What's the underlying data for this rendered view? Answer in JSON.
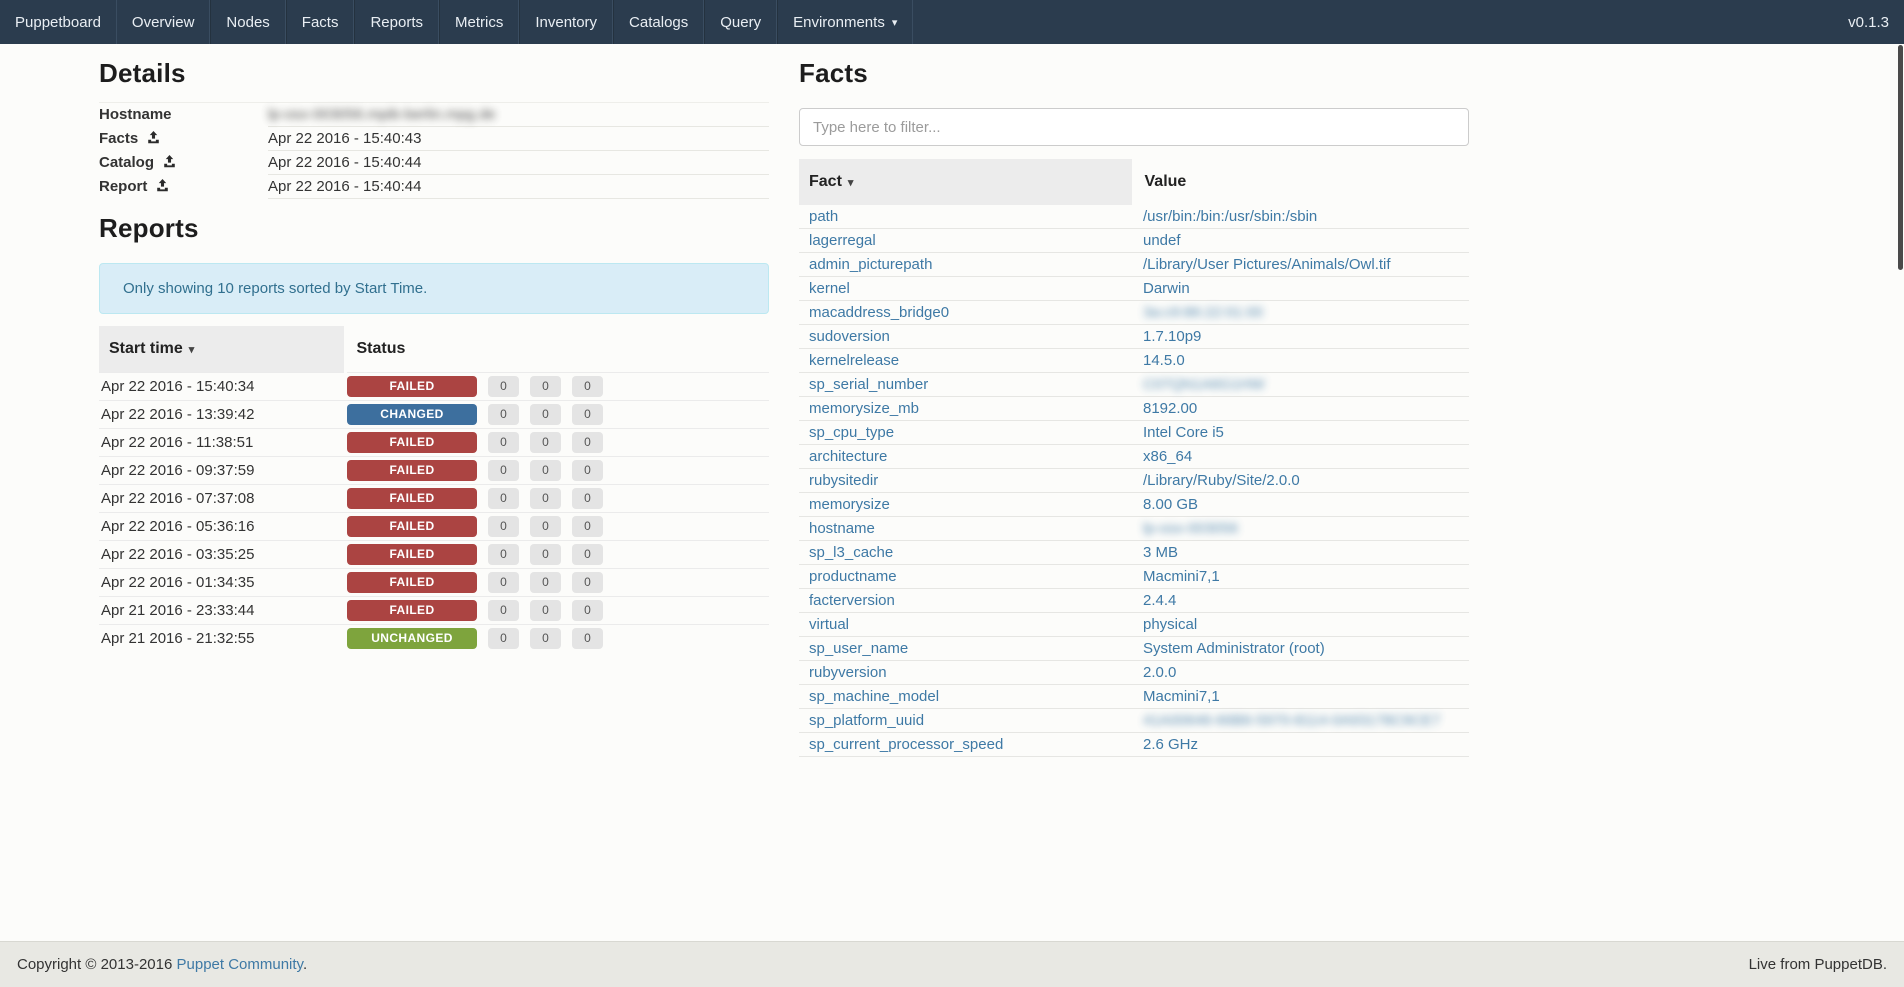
{
  "navbar": {
    "brand": "Puppetboard",
    "items": [
      {
        "label": "Overview"
      },
      {
        "label": "Nodes"
      },
      {
        "label": "Facts"
      },
      {
        "label": "Reports"
      },
      {
        "label": "Metrics"
      },
      {
        "label": "Inventory"
      },
      {
        "label": "Catalogs"
      },
      {
        "label": "Query"
      },
      {
        "label": "Environments",
        "dropdown": true
      }
    ],
    "version": "v0.1.3"
  },
  "icons": {
    "sort_caret": "▾",
    "nav_caret": "▾"
  },
  "details": {
    "title": "Details",
    "rows": [
      {
        "label": "Hostname",
        "value": "lp-osx-003056.mpib-berlin.mpg.de",
        "blurred": true,
        "upload_icon": false
      },
      {
        "label": "Facts",
        "value": "Apr 22 2016 - 15:40:43",
        "blurred": false,
        "upload_icon": true
      },
      {
        "label": "Catalog",
        "value": "Apr 22 2016 - 15:40:44",
        "blurred": false,
        "upload_icon": true
      },
      {
        "label": "Report",
        "value": "Apr 22 2016 - 15:40:44",
        "blurred": false,
        "upload_icon": true
      }
    ]
  },
  "reports": {
    "title": "Reports",
    "alert": "Only showing 10 reports sorted by Start Time.",
    "columns": {
      "start_time": "Start time",
      "status": "Status"
    },
    "rows": [
      {
        "start": "Apr 22 2016 - 15:40:34",
        "status": "FAILED",
        "counts": [
          0,
          0,
          0
        ]
      },
      {
        "start": "Apr 22 2016 - 13:39:42",
        "status": "CHANGED",
        "counts": [
          0,
          0,
          0
        ]
      },
      {
        "start": "Apr 22 2016 - 11:38:51",
        "status": "FAILED",
        "counts": [
          0,
          0,
          0
        ]
      },
      {
        "start": "Apr 22 2016 - 09:37:59",
        "status": "FAILED",
        "counts": [
          0,
          0,
          0
        ]
      },
      {
        "start": "Apr 22 2016 - 07:37:08",
        "status": "FAILED",
        "counts": [
          0,
          0,
          0
        ]
      },
      {
        "start": "Apr 22 2016 - 05:36:16",
        "status": "FAILED",
        "counts": [
          0,
          0,
          0
        ]
      },
      {
        "start": "Apr 22 2016 - 03:35:25",
        "status": "FAILED",
        "counts": [
          0,
          0,
          0
        ]
      },
      {
        "start": "Apr 22 2016 - 01:34:35",
        "status": "FAILED",
        "counts": [
          0,
          0,
          0
        ]
      },
      {
        "start": "Apr 21 2016 - 23:33:44",
        "status": "FAILED",
        "counts": [
          0,
          0,
          0
        ]
      },
      {
        "start": "Apr 21 2016 - 21:32:55",
        "status": "UNCHANGED",
        "counts": [
          0,
          0,
          0
        ]
      }
    ]
  },
  "facts": {
    "title": "Facts",
    "filter_placeholder": "Type here to filter...",
    "columns": {
      "fact": "Fact",
      "value": "Value"
    },
    "rows": [
      {
        "fact": "path",
        "value": "/usr/bin:/bin:/usr/sbin:/sbin",
        "blurred": false
      },
      {
        "fact": "lagerregal",
        "value": "undef",
        "blurred": false
      },
      {
        "fact": "admin_picturepath",
        "value": "/Library/User Pictures/Animals/Owl.tif",
        "blurred": false
      },
      {
        "fact": "kernel",
        "value": "Darwin",
        "blurred": false
      },
      {
        "fact": "macaddress_bridge0",
        "value": "3a:c9:86:22:01:00",
        "blurred": true
      },
      {
        "fact": "sudoversion",
        "value": "1.7.10p9",
        "blurred": false
      },
      {
        "fact": "kernelrelease",
        "value": "14.5.0",
        "blurred": false
      },
      {
        "fact": "sp_serial_number",
        "value": "C07QN1A6G1HW",
        "blurred": true
      },
      {
        "fact": "memorysize_mb",
        "value": "8192.00",
        "blurred": false
      },
      {
        "fact": "sp_cpu_type",
        "value": "Intel Core i5",
        "blurred": false
      },
      {
        "fact": "architecture",
        "value": "x86_64",
        "blurred": false
      },
      {
        "fact": "rubysitedir",
        "value": "/Library/Ruby/Site/2.0.0",
        "blurred": false
      },
      {
        "fact": "memorysize",
        "value": "8.00 GB",
        "blurred": false
      },
      {
        "fact": "hostname",
        "value": "lp-osx-003056",
        "blurred": true
      },
      {
        "fact": "sp_l3_cache",
        "value": "3 MB",
        "blurred": false
      },
      {
        "fact": "productname",
        "value": "Macmini7,1",
        "blurred": false
      },
      {
        "fact": "facterversion",
        "value": "2.4.4",
        "blurred": false
      },
      {
        "fact": "virtual",
        "value": "physical",
        "blurred": false
      },
      {
        "fact": "sp_user_name",
        "value": "System Administrator (root)",
        "blurred": false
      },
      {
        "fact": "rubyversion",
        "value": "2.0.0",
        "blurred": false
      },
      {
        "fact": "sp_machine_model",
        "value": "Macmini7,1",
        "blurred": false
      },
      {
        "fact": "sp_platform_uuid",
        "value": "41A00646-66B6-5970-8114-0A93178C9CE7",
        "blurred": true
      },
      {
        "fact": "sp_current_processor_speed",
        "value": "2.6 GHz",
        "blurred": false
      }
    ]
  },
  "footer": {
    "copyright_prefix": "Copyright © 2013-2016 ",
    "community_link": "Puppet Community",
    "copyright_suffix": ".",
    "right": "Live from PuppetDB."
  },
  "colors": {
    "navbar_bg": "#2b3c4e",
    "link": "#3e79a5",
    "alert_info_bg": "#d9edf7",
    "alert_info_border": "#bce8f1",
    "alert_info_text": "#31708f",
    "status": {
      "FAILED": "#ab4442",
      "CHANGED": "#3d6f9e",
      "UNCHANGED": "#7ea43d"
    },
    "count_badge_bg": "#e4e4e4",
    "footer_bg": "#e8e8e3"
  }
}
